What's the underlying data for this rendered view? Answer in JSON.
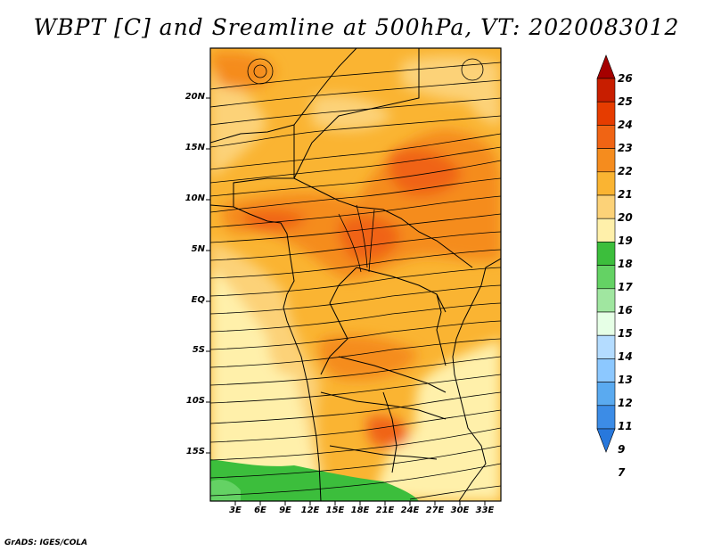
{
  "title": "WBPT [C] and Sreamline at 500hPa, VT: 2020083012",
  "footer": "GrADS: IGES/COLA",
  "map": {
    "lat_labels": [
      "20N",
      "15N",
      "10N",
      "5N",
      "EQ",
      "5S",
      "10S",
      "15S"
    ],
    "lon_labels": [
      "3E",
      "6E",
      "9E",
      "12E",
      "15E",
      "18E",
      "21E",
      "24E",
      "27E",
      "30E",
      "33E"
    ]
  },
  "colorbar": {
    "levels": [
      "26",
      "25",
      "24",
      "23",
      "22",
      "21",
      "20",
      "19",
      "18",
      "17",
      "16",
      "15",
      "14",
      "13",
      "12",
      "11",
      "9",
      "7"
    ],
    "colors": [
      "#a50000",
      "#c81e00",
      "#e63c00",
      "#f06414",
      "#f58c1e",
      "#fab432",
      "#fcd278",
      "#fff0aa",
      "#3cbe3c",
      "#64d264",
      "#a0e6a0",
      "#e6ffe6",
      "#b4dcff",
      "#8cc8ff",
      "#5aaaf0",
      "#3c8ce6",
      "#2878dc"
    ]
  }
}
